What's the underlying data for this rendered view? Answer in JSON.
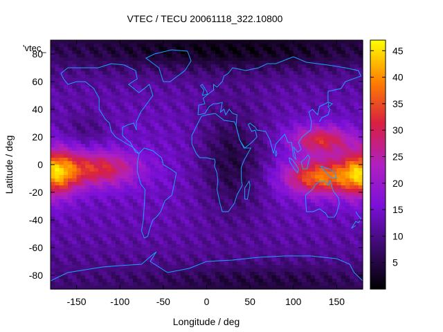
{
  "chart_data": {
    "type": "heatmap",
    "title": "VTEC / TECU 20061118_322.10800",
    "xlabel": "Longitude / deg",
    "ylabel": "Latitude / deg",
    "series_label": "'vtec_",
    "xlim": [
      -180,
      180
    ],
    "ylim": [
      -90,
      90
    ],
    "x_ticks": [
      -150,
      -100,
      -50,
      0,
      50,
      100,
      150
    ],
    "y_ticks": [
      -80,
      -60,
      -40,
      -20,
      0,
      20,
      40,
      60,
      80
    ],
    "colorbar": {
      "range": [
        0,
        47
      ],
      "ticks": [
        5,
        10,
        15,
        20,
        25,
        30,
        35,
        40,
        45
      ],
      "palette": [
        "#000000",
        "#3a0a6a",
        "#7a10d8",
        "#b020c0",
        "#d82040",
        "#ff8000",
        "#ffff00"
      ]
    },
    "grid_resolution_deg": [
      5,
      2.5
    ],
    "features": [
      {
        "name": "pacific-east-peak",
        "lon": -175,
        "lat": -12,
        "value": 42
      },
      {
        "name": "asia-pacific-north-crest",
        "lon": 130,
        "lat": 18,
        "value": 33
      },
      {
        "name": "asia-pacific-south-crest",
        "lon": 128,
        "lat": -8,
        "value": 40
      },
      {
        "name": "africa-minimum",
        "lon": 25,
        "lat": 5,
        "value": 6
      },
      {
        "name": "north-polar-minimum",
        "lon": 30,
        "lat": 80,
        "value": 3
      },
      {
        "name": "south-polar-minimum",
        "lon": 60,
        "lat": -82,
        "value": 5
      }
    ],
    "coastline_color": "#1ea0ff"
  }
}
